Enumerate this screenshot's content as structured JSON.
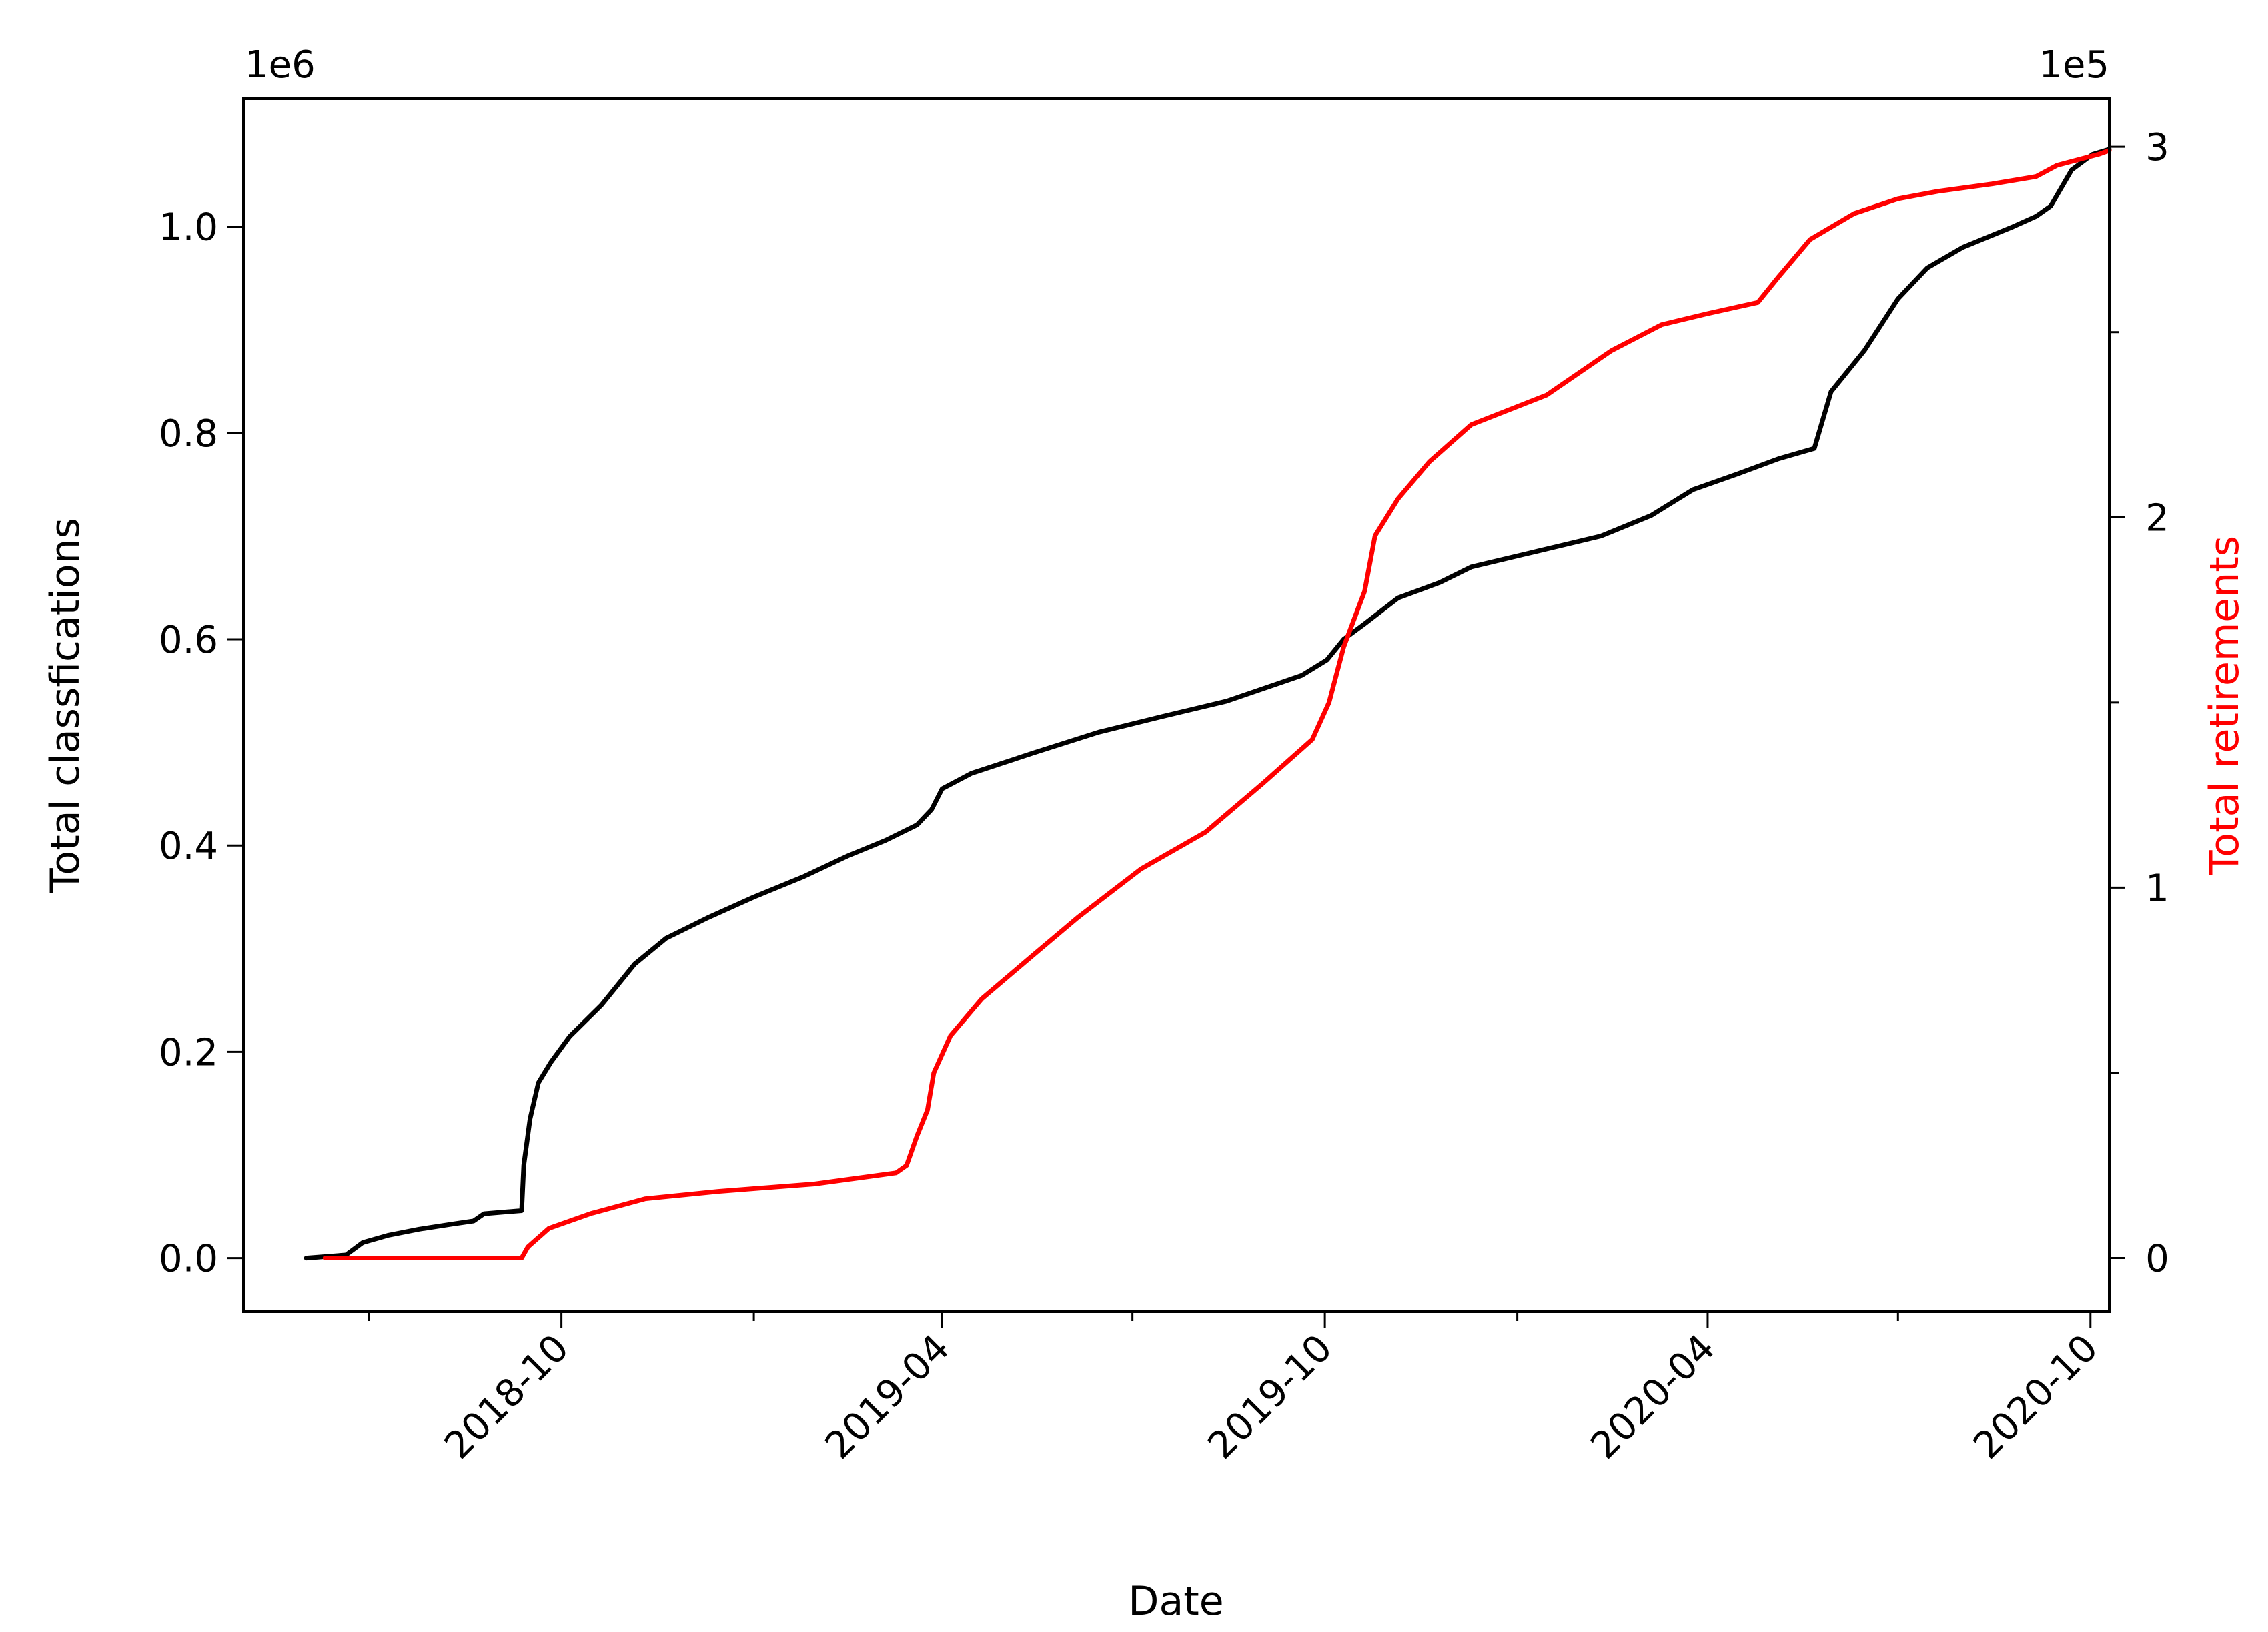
{
  "chart_data": {
    "type": "line",
    "xlabel": "Date",
    "x_ticks": [
      "2018-10",
      "2019-04",
      "2019-10",
      "2020-04",
      "2020-10"
    ],
    "x_tick_dates": [
      "2018-10-01",
      "2019-04-01",
      "2019-10-01",
      "2020-04-01",
      "2020-10-01"
    ],
    "x_minor_tick_dates": [
      "2018-07-01",
      "2019-01-01",
      "2019-07-01",
      "2020-01-01",
      "2020-07-01"
    ],
    "xlim": [
      "2018-05-02",
      "2020-10-10"
    ],
    "left_axis": {
      "label": "Total classfications",
      "offset_text": "1e6",
      "ticks": [
        "0.0",
        "0.2",
        "0.4",
        "0.6",
        "0.8",
        "1.0"
      ],
      "tick_values": [
        0.0,
        0.2,
        0.4,
        0.6,
        0.8,
        1.0
      ],
      "ylim": [
        -0.052,
        1.124
      ],
      "color": "#000000"
    },
    "right_axis": {
      "label": "Total retirements",
      "offset_text": "1e5",
      "ticks": [
        "0",
        "1",
        "2",
        "3"
      ],
      "tick_values": [
        0,
        1,
        2,
        3
      ],
      "minor_tick_values": [
        0.5,
        1.5,
        2.5
      ],
      "ylim": [
        -0.145,
        3.13
      ],
      "color": "#ff0000"
    },
    "series": [
      {
        "axis": "left",
        "color": "#000000",
        "points": [
          [
            "2018-06-01",
            0.0
          ],
          [
            "2018-06-20",
            0.003
          ],
          [
            "2018-06-28",
            0.015
          ],
          [
            "2018-07-10",
            0.022
          ],
          [
            "2018-07-25",
            0.028
          ],
          [
            "2018-08-10",
            0.033
          ],
          [
            "2018-08-20",
            0.036
          ],
          [
            "2018-08-25",
            0.043
          ],
          [
            "2018-09-12",
            0.046
          ],
          [
            "2018-09-13",
            0.09
          ],
          [
            "2018-09-16",
            0.135
          ],
          [
            "2018-09-20",
            0.17
          ],
          [
            "2018-09-26",
            0.19
          ],
          [
            "2018-10-05",
            0.215
          ],
          [
            "2018-10-20",
            0.245
          ],
          [
            "2018-11-05",
            0.285
          ],
          [
            "2018-11-20",
            0.31
          ],
          [
            "2018-12-10",
            0.33
          ],
          [
            "2019-01-01",
            0.35
          ],
          [
            "2019-01-25",
            0.37
          ],
          [
            "2019-02-15",
            0.39
          ],
          [
            "2019-03-05",
            0.405
          ],
          [
            "2019-03-20",
            0.42
          ],
          [
            "2019-03-27",
            0.435
          ],
          [
            "2019-04-01",
            0.455
          ],
          [
            "2019-04-15",
            0.47
          ],
          [
            "2019-05-15",
            0.49
          ],
          [
            "2019-06-15",
            0.51
          ],
          [
            "2019-07-15",
            0.525
          ],
          [
            "2019-08-15",
            0.54
          ],
          [
            "2019-09-20",
            0.565
          ],
          [
            "2019-10-02",
            0.58
          ],
          [
            "2019-10-10",
            0.6
          ],
          [
            "2019-10-20",
            0.615
          ],
          [
            "2019-11-05",
            0.64
          ],
          [
            "2019-11-25",
            0.655
          ],
          [
            "2019-12-10",
            0.67
          ],
          [
            "2020-01-10",
            0.685
          ],
          [
            "2020-02-10",
            0.7
          ],
          [
            "2020-03-05",
            0.72
          ],
          [
            "2020-03-25",
            0.745
          ],
          [
            "2020-04-15",
            0.76
          ],
          [
            "2020-05-05",
            0.775
          ],
          [
            "2020-05-22",
            0.785
          ],
          [
            "2020-05-30",
            0.84
          ],
          [
            "2020-06-15",
            0.88
          ],
          [
            "2020-07-01",
            0.93
          ],
          [
            "2020-07-15",
            0.96
          ],
          [
            "2020-08-01",
            0.98
          ],
          [
            "2020-08-25",
            1.0
          ],
          [
            "2020-09-05",
            1.01
          ],
          [
            "2020-09-12",
            1.02
          ],
          [
            "2020-09-22",
            1.055
          ],
          [
            "2020-10-02",
            1.07
          ],
          [
            "2020-10-10",
            1.075
          ]
        ]
      },
      {
        "axis": "right",
        "color": "#ff0000",
        "points": [
          [
            "2018-06-10",
            0.0
          ],
          [
            "2018-09-12",
            0.0
          ],
          [
            "2018-09-15",
            0.03
          ],
          [
            "2018-09-25",
            0.08
          ],
          [
            "2018-10-15",
            0.12
          ],
          [
            "2018-11-10",
            0.16
          ],
          [
            "2018-12-15",
            0.18
          ],
          [
            "2019-01-30",
            0.2
          ],
          [
            "2019-02-25",
            0.22
          ],
          [
            "2019-03-10",
            0.23
          ],
          [
            "2019-03-15",
            0.25
          ],
          [
            "2019-03-20",
            0.33
          ],
          [
            "2019-03-25",
            0.4
          ],
          [
            "2019-03-28",
            0.5
          ],
          [
            "2019-04-05",
            0.6
          ],
          [
            "2019-04-20",
            0.7
          ],
          [
            "2019-05-15",
            0.82
          ],
          [
            "2019-06-05",
            0.92
          ],
          [
            "2019-07-05",
            1.05
          ],
          [
            "2019-08-05",
            1.15
          ],
          [
            "2019-09-01",
            1.28
          ],
          [
            "2019-09-25",
            1.4
          ],
          [
            "2019-10-03",
            1.5
          ],
          [
            "2019-10-10",
            1.65
          ],
          [
            "2019-10-20",
            1.8
          ],
          [
            "2019-10-25",
            1.95
          ],
          [
            "2019-11-05",
            2.05
          ],
          [
            "2019-11-20",
            2.15
          ],
          [
            "2019-12-10",
            2.25
          ],
          [
            "2020-01-15",
            2.33
          ],
          [
            "2020-02-15",
            2.45
          ],
          [
            "2020-03-10",
            2.52
          ],
          [
            "2020-04-01",
            2.55
          ],
          [
            "2020-04-25",
            2.58
          ],
          [
            "2020-05-05",
            2.65
          ],
          [
            "2020-05-20",
            2.75
          ],
          [
            "2020-06-10",
            2.82
          ],
          [
            "2020-07-01",
            2.86
          ],
          [
            "2020-07-20",
            2.88
          ],
          [
            "2020-08-15",
            2.9
          ],
          [
            "2020-09-05",
            2.92
          ],
          [
            "2020-09-15",
            2.95
          ],
          [
            "2020-10-05",
            2.98
          ],
          [
            "2020-10-10",
            2.99
          ]
        ]
      }
    ]
  }
}
